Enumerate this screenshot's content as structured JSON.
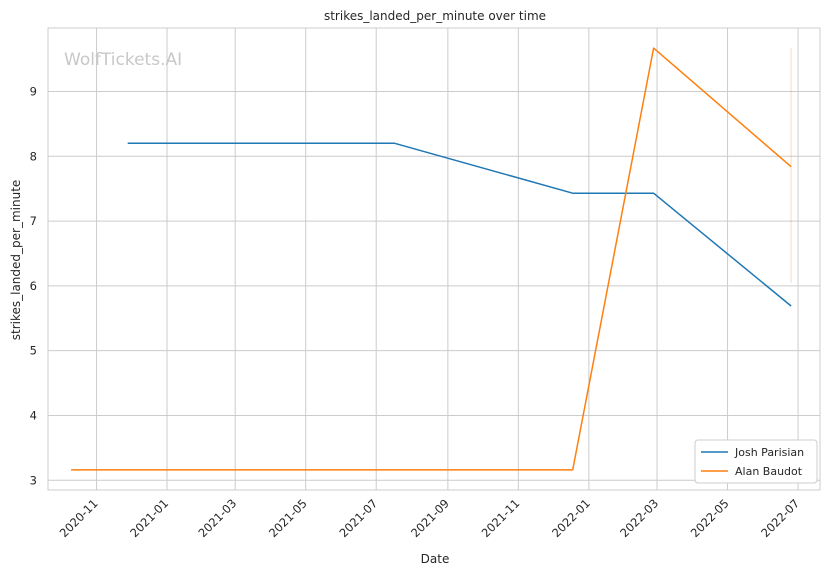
{
  "chart_data": {
    "type": "line",
    "title": "strikes_landed_per_minute over time",
    "xlabel": "Date",
    "ylabel": "strikes_landed_per_minute",
    "watermark": "WolfTickets.AI",
    "x_tick_labels": [
      "2020-11",
      "2021-01",
      "2021-03",
      "2021-05",
      "2021-07",
      "2021-09",
      "2021-11",
      "2022-01",
      "2022-03",
      "2022-05",
      "2022-07"
    ],
    "x_tick_dates": [
      "2020-11-01",
      "2021-01-01",
      "2021-03-01",
      "2021-05-01",
      "2021-07-01",
      "2021-09-01",
      "2021-11-01",
      "2022-01-01",
      "2022-03-01",
      "2022-05-01",
      "2022-07-01"
    ],
    "y_ticks": [
      3,
      4,
      5,
      6,
      7,
      8,
      9
    ],
    "xlim": [
      "2020-09-20",
      "2022-07-20"
    ],
    "ylim": [
      2.85,
      9.98
    ],
    "grid": true,
    "legend_position": "bottom-right",
    "series": [
      {
        "name": "Josh Parisian",
        "color": "#1f77b4",
        "points": [
          {
            "x": "2020-11-28",
            "y": 8.2
          },
          {
            "x": "2021-07-17",
            "y": 8.2
          },
          {
            "x": "2021-12-18",
            "y": 7.43
          },
          {
            "x": "2022-02-26",
            "y": 7.43
          },
          {
            "x": "2022-06-25",
            "y": 5.69
          }
        ]
      },
      {
        "name": "Alan Baudot",
        "color": "#ff7f0e",
        "points": [
          {
            "x": "2020-10-10",
            "y": 3.16
          },
          {
            "x": "2021-12-18",
            "y": 3.16
          },
          {
            "x": "2022-02-26",
            "y": 9.67
          },
          {
            "x": "2022-06-25",
            "y": 7.84
          }
        ]
      }
    ],
    "uncertainty_band": {
      "x": "2022-06-25",
      "y_range": [
        6.05,
        9.67
      ],
      "color": "#ff7f0e"
    }
  }
}
